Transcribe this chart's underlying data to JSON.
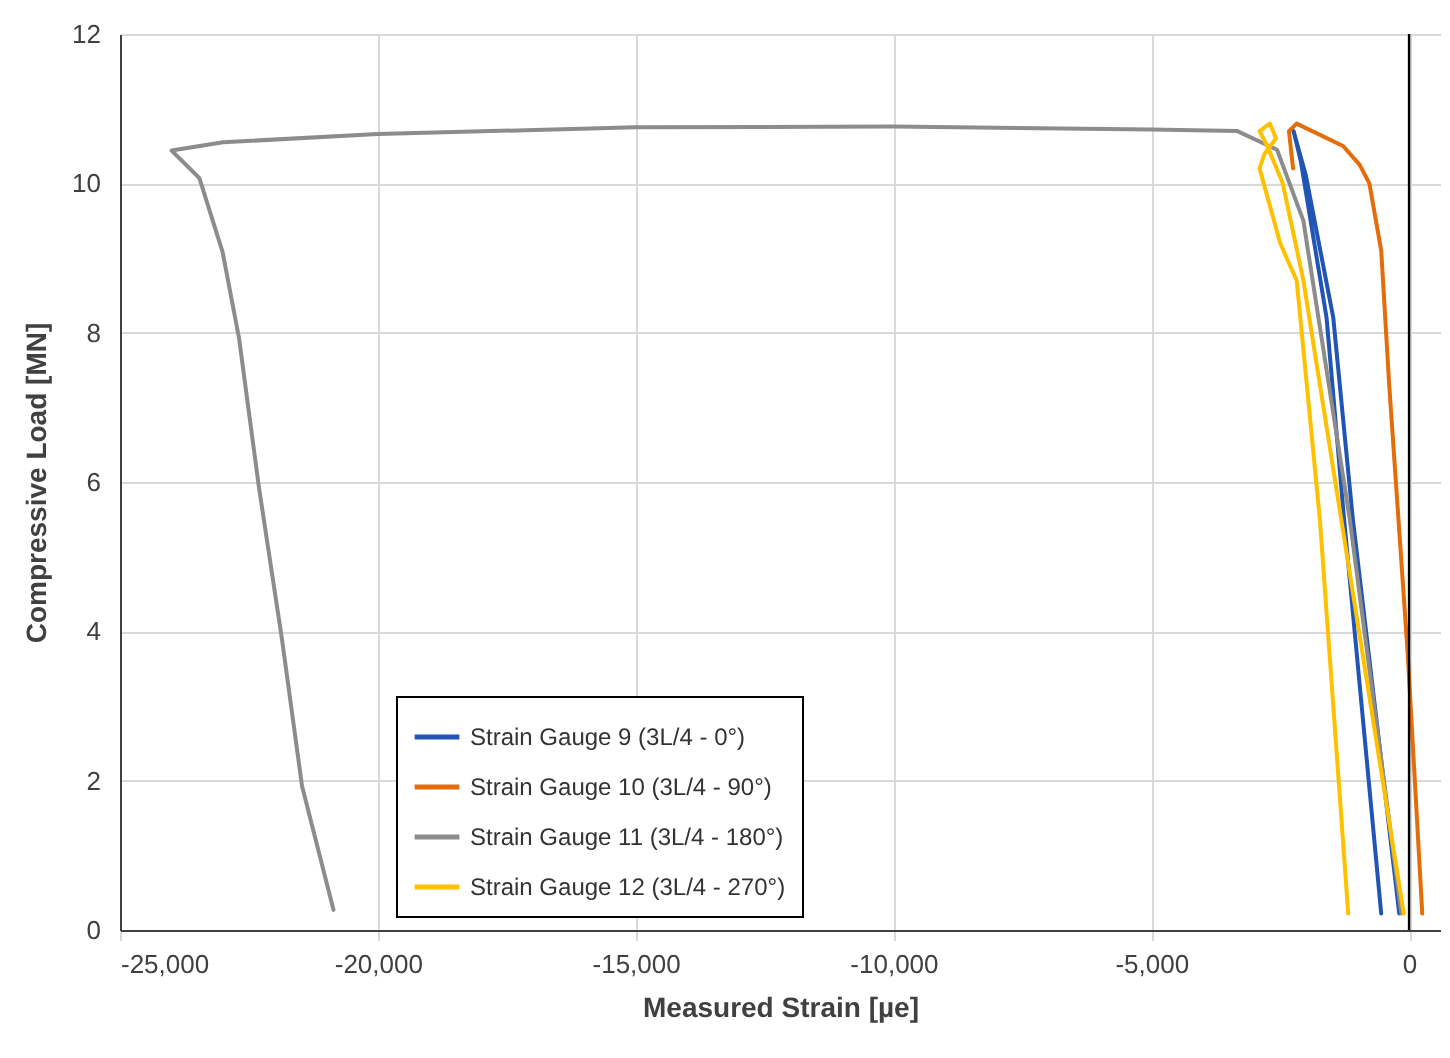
{
  "chart_data": {
    "type": "line",
    "xlabel": "Measured Strain [µe]",
    "ylabel": "Compressive Load [MN]",
    "xlim": [
      -25000,
      600
    ],
    "xticks": [
      {
        "value": -25000,
        "label": "-25,000"
      },
      {
        "value": -20000,
        "label": "-20,000"
      },
      {
        "value": -15000,
        "label": "-15,000"
      },
      {
        "value": -10000,
        "label": "-10,000"
      },
      {
        "value": -5000,
        "label": "-5,000"
      },
      0
    ],
    "ylim": [
      0,
      12
    ],
    "yticks": [
      0,
      2,
      4,
      6,
      8,
      10,
      12
    ],
    "grid": true,
    "legend": "bottom",
    "marker": "none",
    "line_style": "solid",
    "ref_lines": [
      {
        "axis": "x",
        "value": 0,
        "color": "#000000"
      }
    ],
    "series": [
      {
        "name": "Strain Gauge 9 (3L/4 - 0°)",
        "color": "#2155b5",
        "x": [
          -190,
          -1090,
          -1470,
          -2000,
          -2240,
          -2100,
          -1600,
          -1260,
          -540
        ],
        "values": [
          0.22,
          5.5,
          8.2,
          10.1,
          10.7,
          10.3,
          8.2,
          5.5,
          0.22
        ]
      },
      {
        "name": "Strain Gauge 10 (3L/4 - 90°)",
        "color": "#e46c0a",
        "x": [
          256,
          -26,
          -385,
          -540,
          -770,
          -960,
          -1280,
          -2180,
          -2330,
          -2250
        ],
        "values": [
          0.22,
          3.7,
          7.3,
          9.1,
          10,
          10.25,
          10.5,
          10.8,
          10.7,
          10.2
        ]
      },
      {
        "name": "Strain Gauge 11 (3L/4 - 180°)",
        "color": "#8c8c8c",
        "x": [
          -150,
          -1150,
          -2050,
          -2560,
          -3330,
          -5000,
          -10000,
          -15000,
          -20000,
          -23000,
          -24000,
          -23460,
          -23010,
          -22690,
          -22310,
          -21860,
          -21470,
          -20860
        ],
        "values": [
          0.22,
          5.5,
          9.5,
          10.45,
          10.7,
          10.72,
          10.76,
          10.75,
          10.66,
          10.55,
          10.44,
          10.07,
          9.08,
          7.92,
          5.95,
          3.9,
          1.93,
          0.27
        ]
      },
      {
        "name": "Strain Gauge 12 (3L/4 - 270°)",
        "color": "#ffc000",
        "x": [
          -103,
          -2050,
          -2450,
          -2750,
          -2900,
          -2700,
          -2580,
          -2800,
          -2900,
          -2500,
          -2310,
          -2180,
          -1730,
          -1180
        ],
        "values": [
          0.22,
          8.7,
          10,
          10.5,
          10.7,
          10.8,
          10.6,
          10.4,
          10.2,
          9.2,
          8.9,
          8.7,
          5.5,
          0.22
        ]
      }
    ]
  }
}
